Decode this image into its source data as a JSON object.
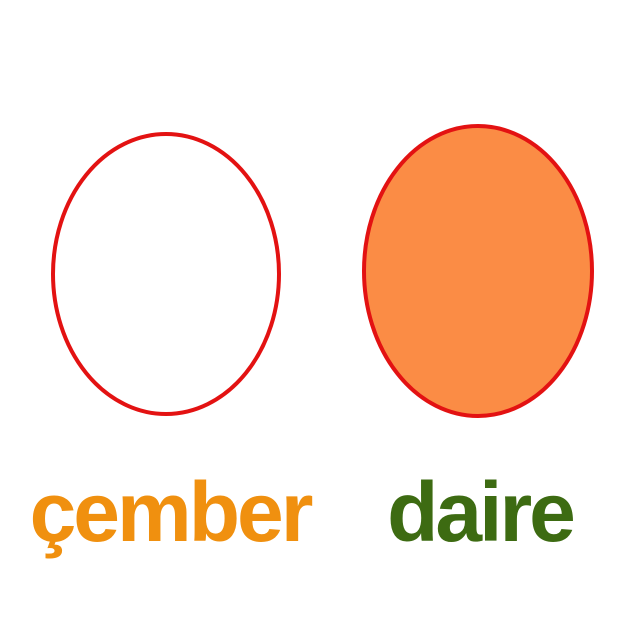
{
  "shapes": [
    {
      "name": "cember",
      "label": "çember",
      "label_color": "#f0900f",
      "stroke_color": "#e31212",
      "fill_color": "#ffffff"
    },
    {
      "name": "daire",
      "label": "daire",
      "label_color": "#3d6b12",
      "stroke_color": "#e31212",
      "fill_color": "#fb8c45"
    }
  ]
}
